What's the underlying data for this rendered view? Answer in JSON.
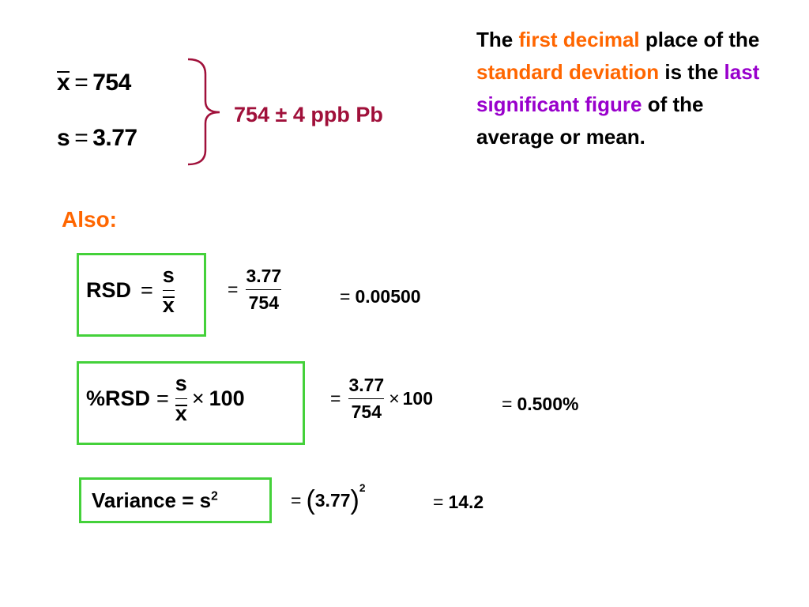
{
  "mean_eq": {
    "var": "x",
    "op": "=",
    "value": "754"
  },
  "sd_eq": {
    "var": "s",
    "op": "=",
    "value": "3.77"
  },
  "summary": "754 ± 4 ppb Pb",
  "note": {
    "p1": "The ",
    "p2": "first decimal",
    "p3": " place of the ",
    "p4": "standard deviation",
    "p5": " is the ",
    "p6": "last significant figure",
    "p7": " of the average or mean."
  },
  "also_label": "Also:",
  "rsd": {
    "label": "RSD",
    "eq": "=",
    "num": "s",
    "den": "x",
    "step_num": "3.77",
    "step_den": "754",
    "result": "0.00500"
  },
  "prsd": {
    "label": "%RSD",
    "eq": "=",
    "num": "s",
    "den": "x",
    "times": "×",
    "hundred": "100",
    "step_num": "3.77",
    "step_den": "754",
    "result": "0.500%"
  },
  "variance": {
    "label": "Variance = s",
    "exp": "2",
    "open": "(",
    "value": "3.77",
    "close": ")",
    "result": "14.2"
  },
  "colors": {
    "orange": "#ff6600",
    "purple": "#9900cc",
    "summary": "#a0103a",
    "box_border": "#44d13a"
  }
}
